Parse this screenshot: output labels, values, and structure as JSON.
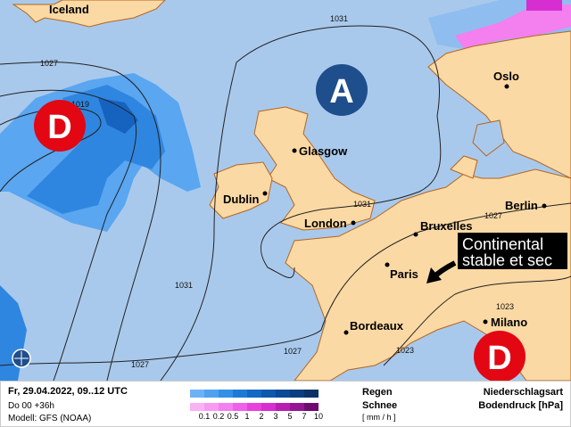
{
  "map": {
    "cities": [
      {
        "name": "Iceland"
      },
      {
        "name": "Oslo"
      },
      {
        "name": "Glasgow"
      },
      {
        "name": "Dublin"
      },
      {
        "name": "London"
      },
      {
        "name": "Bruxelles"
      },
      {
        "name": "Berlin"
      },
      {
        "name": "Paris"
      },
      {
        "name": "Bordeaux"
      },
      {
        "name": "Milano"
      }
    ],
    "pressure_centers": [
      {
        "letter": "A",
        "type": "high",
        "color": "#1f4e8c"
      },
      {
        "letter": "D",
        "type": "low",
        "color": "#e30613"
      },
      {
        "letter": "D",
        "type": "low",
        "color": "#e30613"
      }
    ],
    "isobar_labels": [
      "1027",
      "1019",
      "1031",
      "1031",
      "1031",
      "1027",
      "1027",
      "1027",
      "1023",
      "1023"
    ],
    "callout": {
      "line1": "Continental",
      "line2": "stable et sec"
    },
    "colors": {
      "sea": "#a9c9ec",
      "land": "#fbd9a4",
      "border": "#b5651d",
      "rain": "#1e78d6",
      "snow": "#f060e0"
    }
  },
  "footer": {
    "datetime": "Fr, 29.04.2022, 09..12 UTC",
    "run": "Do 00 +36h",
    "model": "Modell: GFS (NOAA)",
    "rain_label": "Regen",
    "snow_label": "Schnee",
    "unit": "[ mm / h ]",
    "scale_ticks": [
      "0.1",
      "0.2",
      "0.5",
      "1",
      "2",
      "3",
      "5",
      "7",
      "10"
    ],
    "rain_colors": [
      "#6bb3f5",
      "#4ea2ef",
      "#3390e6",
      "#1e7ad6",
      "#1368c4",
      "#0d58af",
      "#0a4a98",
      "#0a3e80",
      "#0b3266"
    ],
    "snow_colors": [
      "#f9b3f3",
      "#f79af1",
      "#f47fee",
      "#f060e8",
      "#e840df",
      "#d62ed0",
      "#b81fb0",
      "#951493",
      "#700a70"
    ],
    "legend_title": "Niederschlagsart",
    "legend_subtitle": "Bodendruck [hPa]"
  }
}
